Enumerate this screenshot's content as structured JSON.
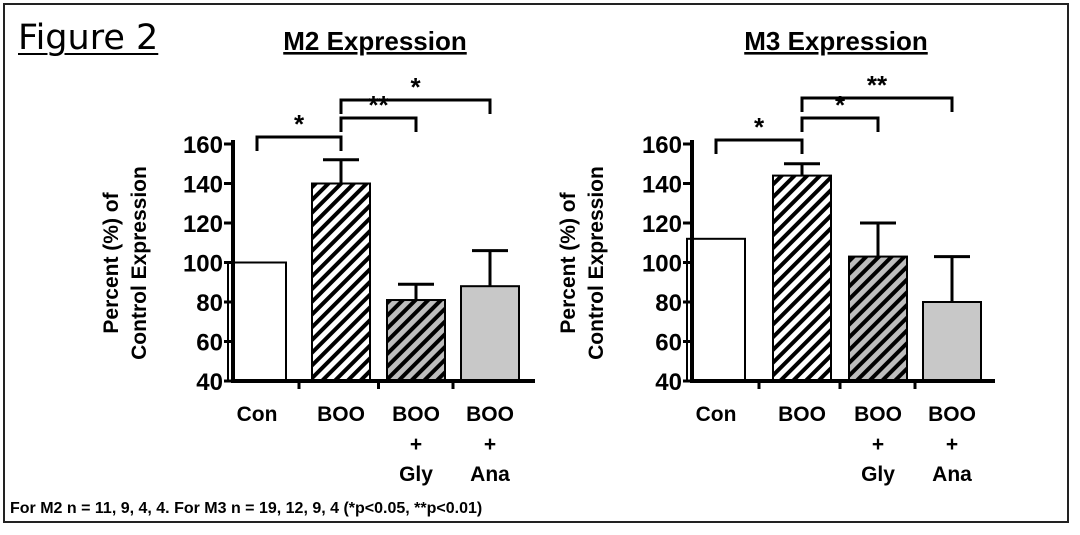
{
  "figure_label": "Figure 2",
  "footnote": "For M2 n = 11, 9, 4, 4.   For M3 n = 19, 12, 9, 4 (*p<0.05, **p<0.01)",
  "colors": {
    "bar_fill": "#ffffff",
    "bar_fill_gray": "#c8c8c8",
    "stroke": "#000000"
  },
  "chart_data": [
    {
      "type": "bar",
      "title": "M2 Expression",
      "ylabel": "Percent (%) of Control Expression",
      "ylabel_lines": [
        "Percent (%) of",
        "Control Expression"
      ],
      "ylim": [
        40,
        160
      ],
      "yticks": [
        "40",
        "60",
        "80",
        "100",
        "120",
        "140",
        "160"
      ],
      "categories": [
        "Con",
        "BOO",
        "BOO + Gly",
        "BOO + Ana"
      ],
      "category_lines": [
        [
          "Con"
        ],
        [
          "BOO"
        ],
        [
          "BOO",
          "+",
          "Gly"
        ],
        [
          "BOO",
          "+",
          "Ana"
        ]
      ],
      "values": [
        100,
        140,
        81,
        88
      ],
      "error_upper": [
        null,
        152,
        89,
        106
      ],
      "fills": [
        "white",
        "hatch",
        "hatch-gray",
        "gray"
      ],
      "significance": [
        {
          "from": 0,
          "to": 1,
          "label": "*"
        },
        {
          "from": 1,
          "to": 2,
          "label": "**"
        },
        {
          "from": 1,
          "to": 3,
          "label": "*"
        }
      ]
    },
    {
      "type": "bar",
      "title": "M3 Expression",
      "ylabel": "Percent (%) of Control Expression",
      "ylabel_lines": [
        "Percent (%) of",
        "Control Expression"
      ],
      "ylim": [
        40,
        160
      ],
      "yticks": [
        "40",
        "60",
        "80",
        "100",
        "120",
        "140",
        "160"
      ],
      "categories": [
        "Con",
        "BOO",
        "BOO + Gly",
        "BOO + Ana"
      ],
      "category_lines": [
        [
          "Con"
        ],
        [
          "BOO"
        ],
        [
          "BOO",
          "+",
          "Gly"
        ],
        [
          "BOO",
          "+",
          "Ana"
        ]
      ],
      "values": [
        112,
        144,
        103,
        80
      ],
      "error_upper": [
        null,
        150,
        120,
        103
      ],
      "fills": [
        "white",
        "hatch",
        "hatch-gray",
        "gray"
      ],
      "significance": [
        {
          "from": 0,
          "to": 1,
          "label": "*"
        },
        {
          "from": 1,
          "to": 2,
          "label": "*"
        },
        {
          "from": 1,
          "to": 3,
          "label": "**"
        }
      ]
    }
  ]
}
